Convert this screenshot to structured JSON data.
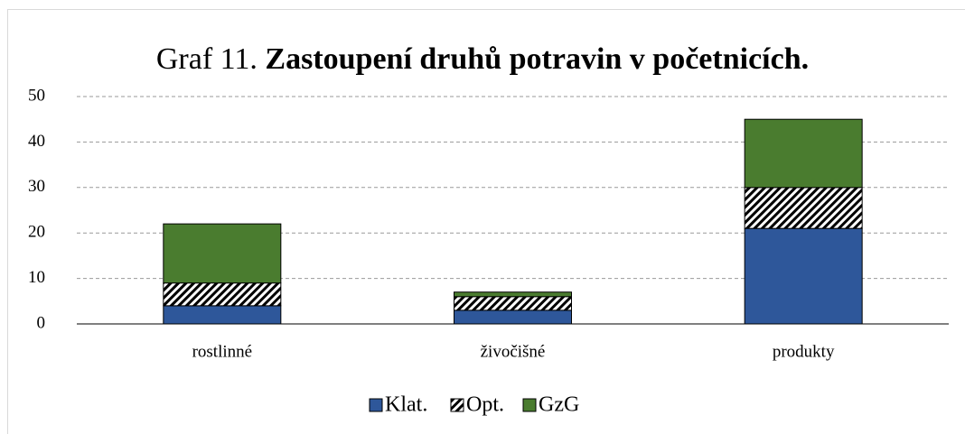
{
  "chart_data": {
    "type": "stacked_bar",
    "title": [
      "Graf 11.",
      "Zastoupení druhů potravin v početnicích."
    ],
    "categories": [
      "rostlinné",
      "živočišné",
      "produkty"
    ],
    "series": [
      {
        "name": "Klat.",
        "color": "#2e579a",
        "values": [
          4,
          3,
          21
        ]
      },
      {
        "name": "Opt.",
        "color": "#000000",
        "pattern": "diagonal-hatch",
        "values": [
          5,
          3,
          9
        ]
      },
      {
        "name": "GzG",
        "color": "#4a7c2f",
        "values": [
          13,
          1,
          15
        ]
      }
    ],
    "ylim": [
      0,
      50
    ],
    "yticks": [
      0,
      10,
      20,
      30,
      40,
      50
    ],
    "grid": true,
    "legend": "bottom"
  }
}
